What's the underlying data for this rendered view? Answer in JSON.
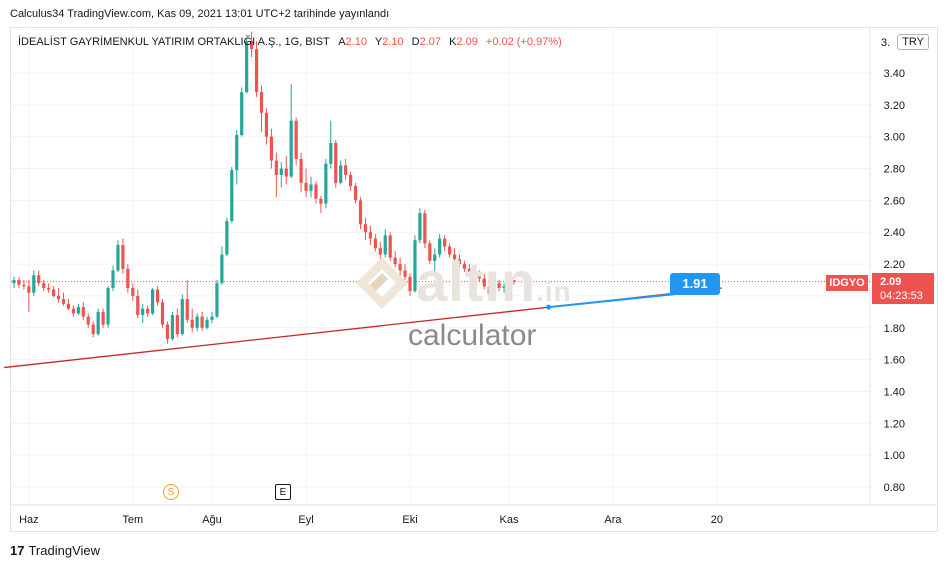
{
  "published": "Calculus34 TradingView.com, Kas 09, 2021 13:01 UTC+2 tarihinde yayınlandı",
  "legend": {
    "symbol": "İDEALİST GAYRİMENKUL YATIRIM ORTAKLIĞI A.Ş., 1G, BIST",
    "o_label": "A",
    "o_value": "2.10",
    "h_label": "Y",
    "h_value": "2.10",
    "l_label": "D",
    "l_value": "2.07",
    "c_label": "K",
    "c_value": "2.09",
    "change": "+0.02 (+0.97%)"
  },
  "currency": "TRY",
  "ticker_tag": "IDGYO",
  "price_tag": {
    "price": "2.09",
    "countdown": "04:23:53"
  },
  "trendline_callout": "1.91",
  "watermark": {
    "brand": "altın",
    "ext": ".in",
    "sub": "calculator"
  },
  "events": {
    "split": "S",
    "earnings": "E"
  },
  "footer": {
    "logo_mark": "17",
    "brand": "TradingView"
  },
  "colors": {
    "up": "#26a69a",
    "down": "#ef5350",
    "trendline": "#c62828",
    "callout": "#2196f3"
  },
  "chart_data": {
    "type": "candlestick",
    "y_ticks": [
      "3.40",
      "3.20",
      "3.00",
      "2.80",
      "2.60",
      "2.40",
      "2.20",
      "2.00",
      "1.80",
      "1.60",
      "1.40",
      "1.20",
      "1.00",
      "0.80"
    ],
    "y_top_tick_partial": "3.",
    "x_ticks": [
      {
        "label": "Haz",
        "idx": 3
      },
      {
        "label": "Tem",
        "idx": 24
      },
      {
        "label": "Ağu",
        "idx": 40
      },
      {
        "label": "Eyl",
        "idx": 59
      },
      {
        "label": "Eki",
        "idx": 80
      },
      {
        "label": "Kas",
        "idx": 100
      },
      {
        "label": "Ara",
        "idx": 121
      },
      {
        "label": "20",
        "idx": 142
      }
    ],
    "ylim": [
      0.7,
      3.55
    ],
    "last_price": 2.09,
    "trendline": {
      "from_idx": -2,
      "from_value": 1.55,
      "to_idx": 143,
      "to_value": 2.05
    },
    "callout_idx": 108,
    "candles": [
      [
        2.08,
        2.12,
        2.05,
        2.1
      ],
      [
        2.1,
        2.12,
        2.05,
        2.07
      ],
      [
        2.07,
        2.1,
        2.04,
        2.06
      ],
      [
        2.06,
        2.1,
        1.9,
        2.02
      ],
      [
        2.02,
        2.16,
        2.0,
        2.13
      ],
      [
        2.13,
        2.16,
        2.06,
        2.08
      ],
      [
        2.08,
        2.1,
        2.03,
        2.05
      ],
      [
        2.05,
        2.08,
        2.02,
        2.04
      ],
      [
        2.04,
        2.06,
        1.99,
        2.0
      ],
      [
        2.0,
        2.05,
        1.96,
        1.98
      ],
      [
        1.98,
        2.02,
        1.94,
        1.95
      ],
      [
        1.95,
        1.98,
        1.91,
        1.92
      ],
      [
        1.92,
        1.94,
        1.87,
        1.89
      ],
      [
        1.89,
        1.95,
        1.88,
        1.93
      ],
      [
        1.93,
        1.96,
        1.85,
        1.87
      ],
      [
        1.87,
        1.89,
        1.8,
        1.82
      ],
      [
        1.82,
        1.84,
        1.74,
        1.76
      ],
      [
        1.76,
        1.92,
        1.75,
        1.9
      ],
      [
        1.9,
        1.92,
        1.8,
        1.82
      ],
      [
        1.82,
        2.06,
        1.8,
        2.05
      ],
      [
        2.05,
        2.19,
        2.03,
        2.16
      ],
      [
        2.16,
        2.35,
        2.15,
        2.32
      ],
      [
        2.32,
        2.36,
        2.14,
        2.17
      ],
      [
        2.17,
        2.2,
        2.02,
        2.05
      ],
      [
        2.05,
        2.08,
        1.97,
        2.0
      ],
      [
        2.0,
        2.04,
        1.86,
        1.88
      ],
      [
        1.88,
        1.95,
        1.83,
        1.92
      ],
      [
        1.92,
        1.94,
        1.87,
        1.89
      ],
      [
        1.89,
        2.05,
        1.88,
        2.04
      ],
      [
        2.04,
        2.06,
        1.94,
        1.96
      ],
      [
        1.96,
        1.98,
        1.8,
        1.82
      ],
      [
        1.82,
        1.84,
        1.7,
        1.73
      ],
      [
        1.73,
        1.9,
        1.72,
        1.88
      ],
      [
        1.88,
        1.92,
        1.74,
        1.76
      ],
      [
        1.76,
        2.01,
        1.75,
        1.98
      ],
      [
        1.98,
        2.1,
        1.83,
        1.85
      ],
      [
        1.85,
        1.92,
        1.77,
        1.8
      ],
      [
        1.8,
        1.89,
        1.78,
        1.87
      ],
      [
        1.87,
        1.9,
        1.78,
        1.8
      ],
      [
        1.8,
        1.87,
        1.79,
        1.85
      ],
      [
        1.85,
        1.9,
        1.83,
        1.87
      ],
      [
        1.87,
        2.1,
        1.86,
        2.08
      ],
      [
        2.08,
        2.31,
        2.07,
        2.26
      ],
      [
        2.26,
        2.49,
        2.25,
        2.47
      ],
      [
        2.47,
        2.81,
        2.46,
        2.79
      ],
      [
        2.79,
        3.04,
        2.7,
        3.01
      ],
      [
        3.01,
        3.31,
        3.0,
        3.28
      ],
      [
        3.28,
        3.62,
        3.27,
        3.6
      ],
      [
        3.6,
        3.66,
        3.5,
        3.55
      ],
      [
        3.55,
        3.6,
        3.25,
        3.28
      ],
      [
        3.28,
        3.32,
        3.03,
        3.15
      ],
      [
        3.15,
        3.18,
        2.95,
        3.0
      ],
      [
        3.0,
        3.05,
        2.8,
        2.85
      ],
      [
        2.85,
        2.9,
        2.62,
        2.76
      ],
      [
        2.76,
        2.84,
        2.68,
        2.8
      ],
      [
        2.8,
        2.88,
        2.7,
        2.75
      ],
      [
        2.75,
        3.33,
        2.74,
        3.1
      ],
      [
        3.1,
        3.12,
        2.82,
        2.86
      ],
      [
        2.86,
        2.9,
        2.65,
        2.71
      ],
      [
        2.71,
        2.8,
        2.62,
        2.66
      ],
      [
        2.66,
        2.75,
        2.62,
        2.7
      ],
      [
        2.7,
        2.72,
        2.58,
        2.61
      ],
      [
        2.61,
        2.63,
        2.52,
        2.58
      ],
      [
        2.58,
        2.86,
        2.55,
        2.83
      ],
      [
        2.83,
        3.1,
        2.8,
        2.96
      ],
      [
        2.96,
        2.98,
        2.68,
        2.71
      ],
      [
        2.71,
        2.85,
        2.7,
        2.82
      ],
      [
        2.82,
        2.86,
        2.73,
        2.76
      ],
      [
        2.76,
        2.78,
        2.66,
        2.69
      ],
      [
        2.69,
        2.71,
        2.58,
        2.6
      ],
      [
        2.6,
        2.62,
        2.42,
        2.45
      ],
      [
        2.45,
        2.49,
        2.35,
        2.4
      ],
      [
        2.4,
        2.44,
        2.32,
        2.36
      ],
      [
        2.36,
        2.39,
        2.28,
        2.3
      ],
      [
        2.3,
        2.34,
        2.22,
        2.26
      ],
      [
        2.26,
        2.42,
        2.24,
        2.38
      ],
      [
        2.38,
        2.4,
        2.22,
        2.24
      ],
      [
        2.24,
        2.28,
        2.18,
        2.2
      ],
      [
        2.2,
        2.24,
        2.13,
        2.16
      ],
      [
        2.16,
        2.2,
        2.1,
        2.12
      ],
      [
        2.12,
        2.14,
        2.0,
        2.03
      ],
      [
        2.03,
        2.38,
        2.02,
        2.35
      ],
      [
        2.35,
        2.55,
        2.33,
        2.52
      ],
      [
        2.52,
        2.54,
        2.3,
        2.33
      ],
      [
        2.33,
        2.35,
        2.2,
        2.22
      ],
      [
        2.22,
        2.3,
        2.15,
        2.26
      ],
      [
        2.26,
        2.39,
        2.24,
        2.36
      ],
      [
        2.36,
        2.38,
        2.28,
        2.31
      ],
      [
        2.31,
        2.33,
        2.24,
        2.26
      ],
      [
        2.26,
        2.3,
        2.21,
        2.23
      ],
      [
        2.23,
        2.26,
        2.18,
        2.2
      ],
      [
        2.2,
        2.22,
        2.15,
        2.17
      ],
      [
        2.17,
        2.2,
        2.13,
        2.15
      ],
      [
        2.15,
        2.18,
        2.11,
        2.13
      ],
      [
        2.13,
        2.16,
        2.09,
        2.11
      ],
      [
        2.11,
        2.14,
        2.04,
        2.06
      ],
      [
        2.06,
        2.08,
        1.98,
        2.01
      ],
      [
        2.01,
        2.1,
        2.0,
        2.08
      ],
      [
        2.08,
        2.1,
        2.03,
        2.05
      ],
      [
        2.05,
        2.08,
        2.02,
        2.06
      ],
      [
        2.06,
        2.1,
        2.04,
        2.07
      ],
      [
        2.1,
        2.1,
        2.07,
        2.09
      ]
    ]
  }
}
